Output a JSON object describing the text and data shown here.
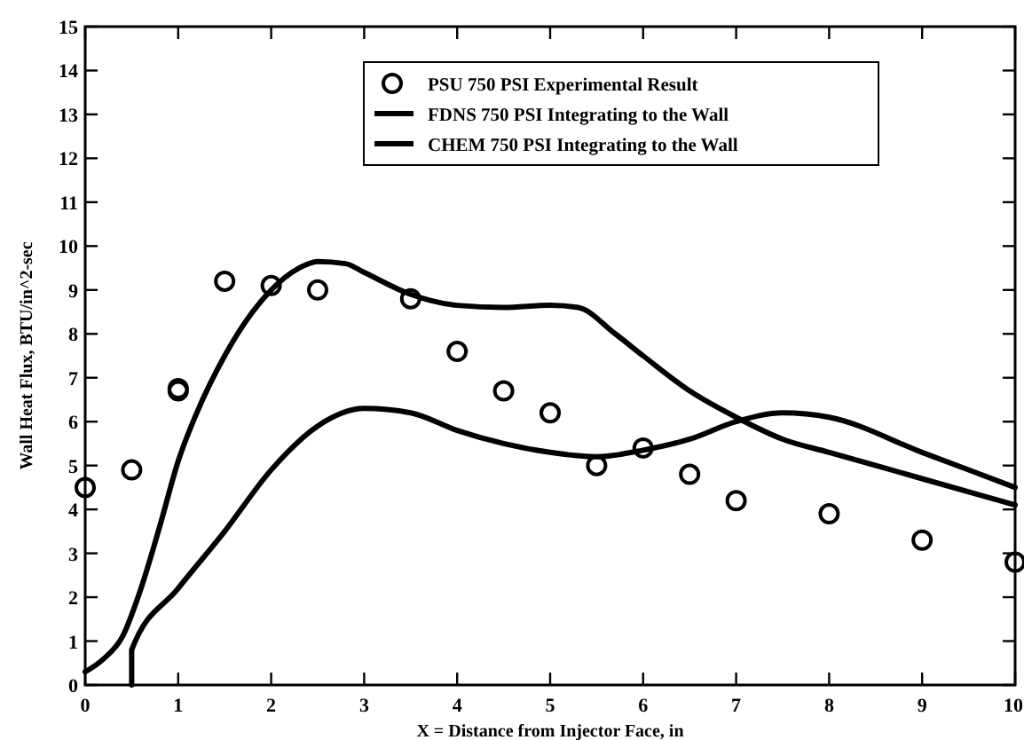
{
  "chart_data": {
    "type": "line",
    "xlabel": "X = Distance from Injector Face, in",
    "ylabel": "Wall Heat Flux, BTU/in^2-sec",
    "xlim": [
      0,
      10
    ],
    "ylim": [
      0,
      15
    ],
    "xticks": [
      0,
      1,
      2,
      3,
      4,
      5,
      6,
      7,
      8,
      9,
      10
    ],
    "yticks": [
      0,
      1,
      2,
      3,
      4,
      5,
      6,
      7,
      8,
      9,
      10,
      11,
      12,
      13,
      14,
      15
    ],
    "legend": "top right",
    "grid": false,
    "series": [
      {
        "name": "PSU 750 PSI Experimental Result",
        "type": "scatter",
        "marker": "circle",
        "color": "#000000",
        "x": [
          0,
          0.5,
          1,
          1,
          1.5,
          2,
          2.5,
          3.5,
          4,
          4.5,
          5,
          5.5,
          6,
          6.5,
          7,
          8,
          9,
          10
        ],
        "values": [
          4.5,
          4.9,
          6.7,
          6.75,
          9.2,
          9.1,
          9.0,
          8.8,
          7.6,
          6.7,
          6.2,
          5.0,
          5.4,
          4.8,
          4.2,
          3.9,
          3.3,
          2.8
        ]
      },
      {
        "name": "FDNS 750 PSI Integrating to the Wall",
        "line_style": "solid",
        "color": "#000000",
        "x": [
          0,
          0.2,
          0.4,
          0.6,
          0.8,
          1,
          1.2,
          1.5,
          1.8,
          2,
          2.3,
          2.5,
          2.8,
          3,
          3.5,
          4,
          4.5,
          5,
          5.3,
          5.7,
          6,
          6.5,
          7,
          7.5,
          8,
          9,
          10
        ],
        "values": [
          0.3,
          0.6,
          1.1,
          2.2,
          3.6,
          5.1,
          6.2,
          7.5,
          8.5,
          9.0,
          9.5,
          9.65,
          9.6,
          9.4,
          8.9,
          8.65,
          8.6,
          8.65,
          8.6,
          8.0,
          7.5,
          6.7,
          6.1,
          5.6,
          5.3,
          4.7,
          4.1
        ]
      },
      {
        "name": "CHEM 750 PSI Integrating to the Wall",
        "line_style": "solid",
        "color": "#000000",
        "x": [
          0.5,
          0.5,
          1,
          1.5,
          2,
          2.5,
          3,
          3.5,
          4,
          4.5,
          5,
          5.5,
          6,
          6.5,
          7,
          7.5,
          8,
          9,
          10
        ],
        "values": [
          0,
          0.8,
          2.2,
          3.5,
          4.9,
          5.9,
          6.3,
          6.2,
          5.8,
          5.5,
          5.3,
          5.2,
          5.35,
          5.6,
          6.0,
          6.2,
          6.1,
          5.3,
          4.5
        ]
      }
    ]
  }
}
